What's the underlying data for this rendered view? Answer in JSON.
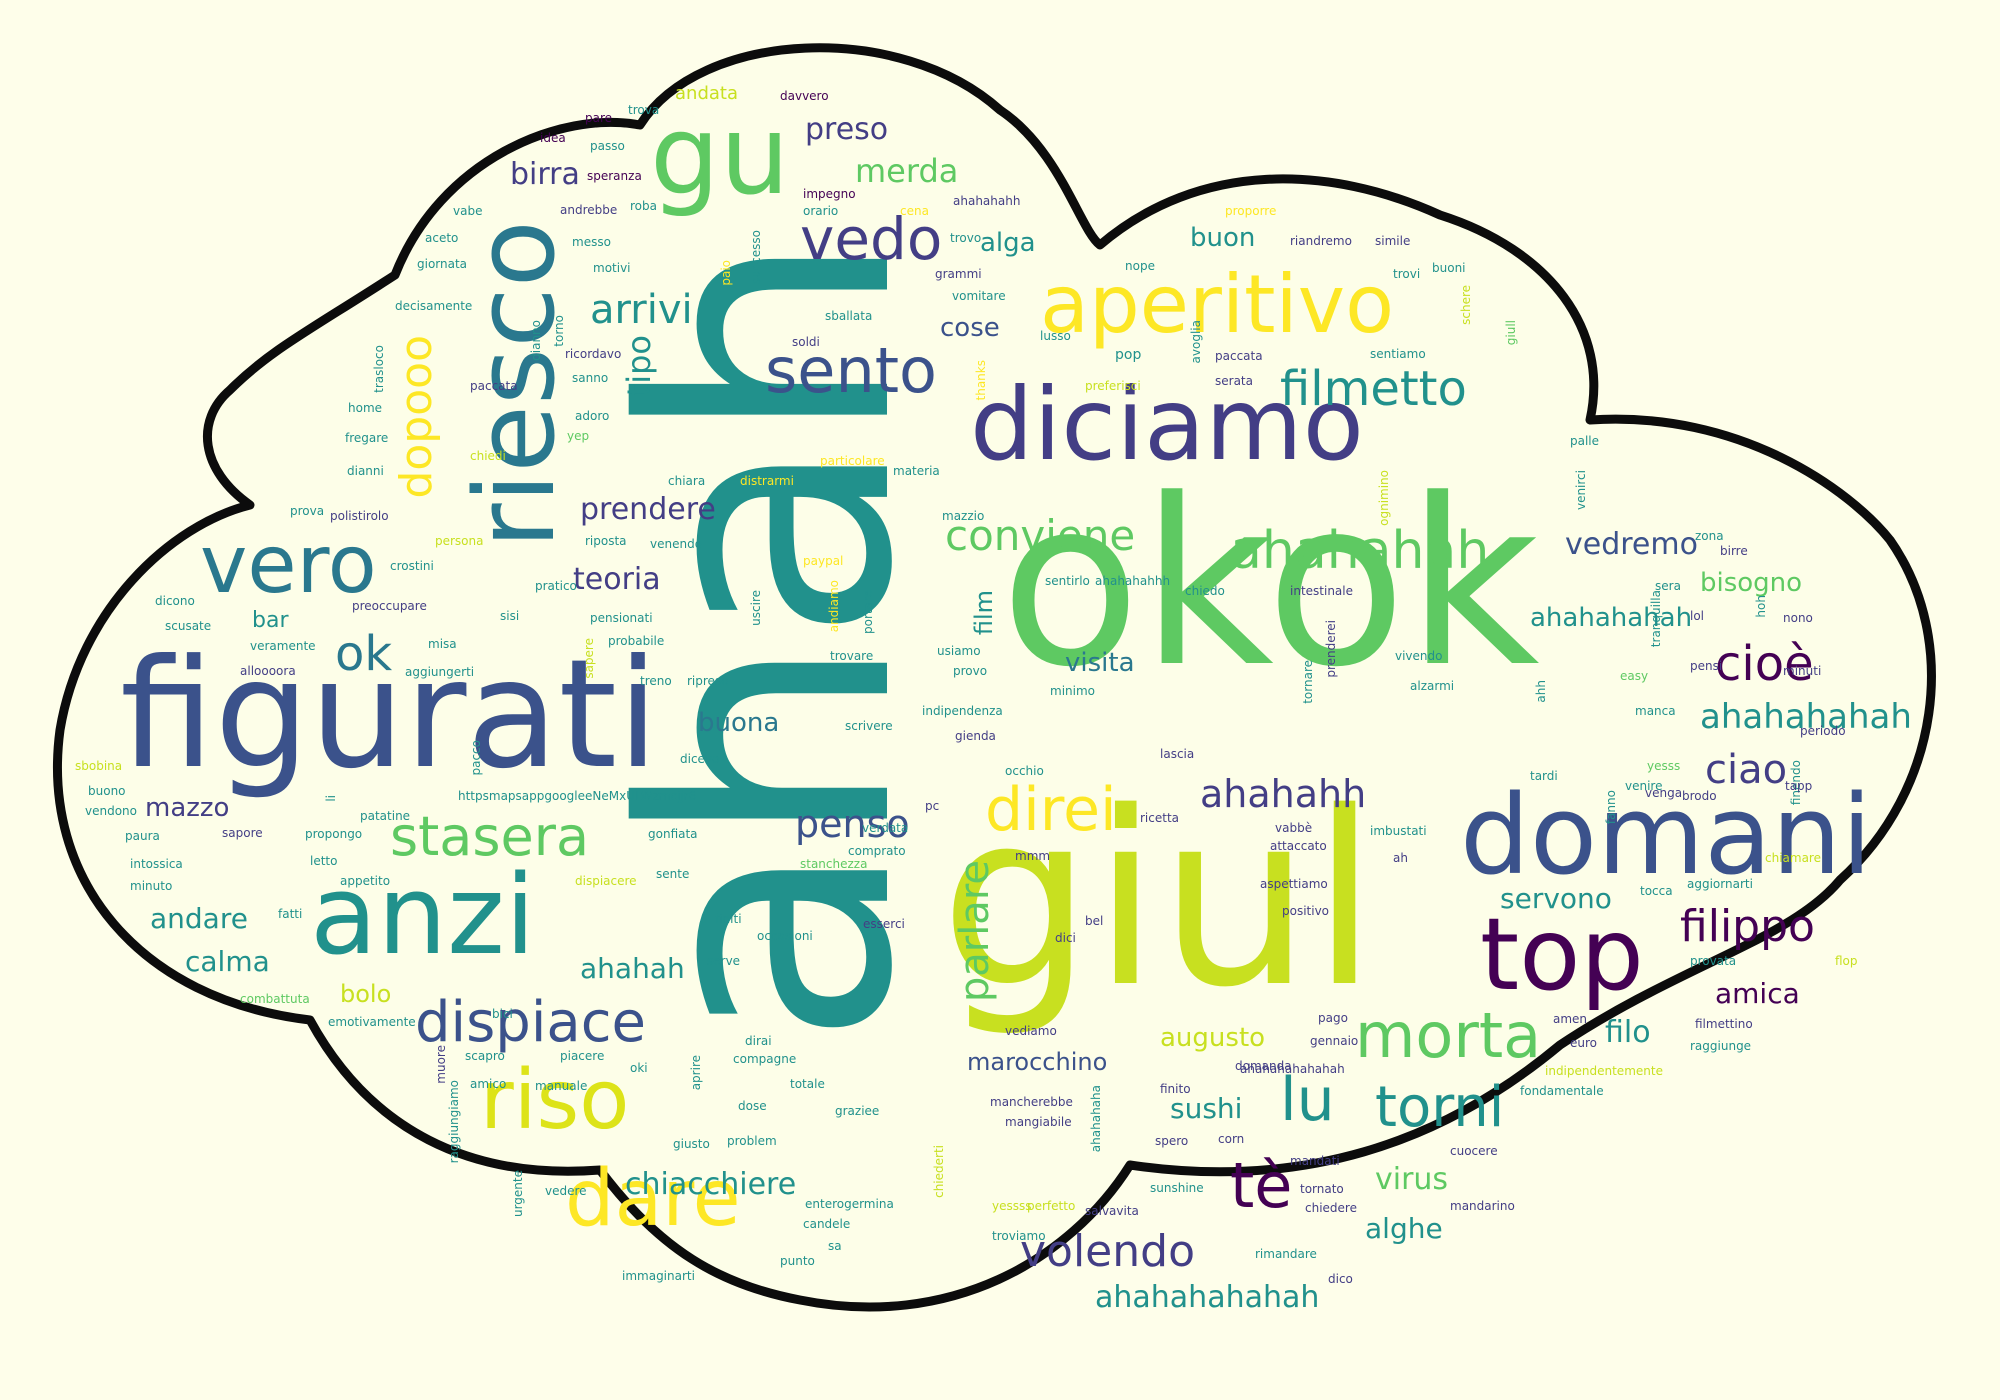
{
  "colors": {
    "background": "#fefeea",
    "cloud_fill": "#fdfee8",
    "cloud_outline": "#0c0c0c",
    "palette": [
      "#440154",
      "#3b528b",
      "#21918c",
      "#5ec962",
      "#fde725"
    ]
  },
  "words": {
    "ahah": "ahah",
    "okok": "okok",
    "giul": "giul",
    "figurati": "figurati",
    "domani": "domani",
    "diciamo": "diciamo",
    "anzi": "anzi",
    "riesco": "riesco",
    "aperitivo": "aperitivo",
    "gu": "gu",
    "top": "top",
    "vero": "vero",
    "riso": "riso",
    "dare": "dare",
    "sento": "sento",
    "vedo": "vedo",
    "morta": "morta",
    "torni": "torni",
    "lu": "lu",
    "te": "tè",
    "stasera": "stasera",
    "ahahahah": "ahahahah",
    "direi": "direi",
    "filmetto": "filmetto",
    "dispiace": "dispiace",
    "dopooo": "dopooo",
    "cioe": "cioè",
    "ok": "ok",
    "conviene": "conviene",
    "ahahahh": "ahahahh",
    "filippo": "filippo",
    "ahahahahah": "ahahahahah",
    "ciao": "ciao",
    "volendo": "volendo",
    "chiacchiere": "chiacchiere",
    "prendere": "prendere",
    "arrivi": "arrivi",
    "vedremo": "vedremo",
    "penso": "penso",
    "parlare": "parlare",
    "ahahahahahah": "ahahahahahah",
    "ahahahahah2": "ahahahahah",
    "merda": "merda",
    "preso": "preso",
    "birra": "birra",
    "teoria": "teoria",
    "tipo": "tipo",
    "buona": "buona",
    "mazzo": "mazzo",
    "andare": "andare",
    "calma": "calma",
    "ahahah": "ahahah",
    "bolo": "bolo",
    "amica": "amica",
    "filo": "filo",
    "augusto": "augusto",
    "sushi": "sushi",
    "virus": "virus",
    "alghe": "alghe",
    "bisogno": "bisogno",
    "servono": "servono",
    "marocchino": "marocchino",
    "visita": "visita",
    "cose": "cose",
    "alga": "alga",
    "buon": "buon",
    "film": "film",
    "bar": "bar",
    "andata": "andata",
    "davvero": "davvero",
    "trova": "trova",
    "pare": "pare",
    "passo": "passo",
    "idea": "idea",
    "speranza": "speranza",
    "impegno": "impegno",
    "ahahahahh": "ahahahahh",
    "andrebbe": "andrebbe",
    "roba": "roba",
    "orario": "orario",
    "cena": "cena",
    "proporre": "proporre",
    "vabe": "vabe",
    "messo": "messo",
    "aceto": "aceto",
    "successo": "successo",
    "trovo": "trovo",
    "riandremo": "riandremo",
    "simile": "simile",
    "giornata": "giornata",
    "motivi": "motivi",
    "grammi": "grammi",
    "nope": "nope",
    "trovi": "trovi",
    "buoni": "buoni",
    "decisamente": "decisamente",
    "vomitare": "vomitare",
    "schere": "schere",
    "paio": "paio",
    "sballata": "sballata",
    "ricordavo": "ricordavo",
    "soldi": "soldi",
    "pop": "pop",
    "lusso": "lusso",
    "paccata": "paccata",
    "sentiamo": "sentiamo",
    "serata": "serata",
    "sanno": "sanno",
    "preferisci": "preferisci",
    "home": "home",
    "adoro": "adoro",
    "fregare": "fregare",
    "yep": "yep",
    "palle": "palle",
    "particolare": "particolare",
    "dianni": "dianni",
    "chiedi": "chiedi",
    "chiara": "chiara",
    "distrarmi": "distrarmi",
    "materia": "materia",
    "prova": "prova",
    "polistirolo": "polistirolo",
    "persona": "persona",
    "riposta": "riposta",
    "mazzio": "mazzio",
    "paypal": "paypal",
    "venendo": "venendo",
    "crostini": "crostini",
    "birre": "birre",
    "zona": "zona",
    "dicono": "dicono",
    "preoccupare": "preoccupare",
    "pratico": "pratico",
    "sentirlo": "sentirlo",
    "ahahahahhh": "ahahahahhh",
    "chiedo": "chiedo",
    "intestinale": "intestinale",
    "sera": "sera",
    "scusate": "scusate",
    "sisi": "sisi",
    "pensionati": "pensionati",
    "uscire": "uscire",
    "portare": "portare",
    "lol": "lol",
    "nono": "nono",
    "veramente": "veramente",
    "misa": "misa",
    "probabile": "probabile",
    "usiamo": "usiamo",
    "vivendo": "vivendo",
    "tornare": "tornare",
    "alloooora": "alloooora",
    "aggiungerti": "aggiungerti",
    "trovare": "trovare",
    "provo": "provo",
    "minimo": "minimo",
    "alzarmi": "alzarmi",
    "easy": "easy",
    "pensi": "pensi",
    "minuti": "minuti",
    "treno": "treno",
    "ripreso": "ripreso",
    "indipendenza": "indipendenza",
    "manca": "manca",
    "sbobina": "sbobina",
    "pacco": "pacco",
    "scrivere": "scrivere",
    "gienda": "gienda",
    "periodo": "periodo",
    "dicevo": "dicevo",
    "occhio": "occhio",
    "lascia": "lascia",
    "tardi": "tardi",
    "yesss": "yesss",
    "finendo": "finendo",
    "buono": "buono",
    "vendono": "vendono",
    "url": "httpsmapsappgoogleeNeMxULWzmcjjr6",
    "pc": "pc",
    "venire": "venire",
    "venga": "venga",
    "brodo": "brodo",
    "tapp": "tapp",
    "paura": "paura",
    "patatine": "patatine",
    "verdata": "verdata",
    "ricetta": "ricetta",
    "mmm": "mmm",
    "vabbe": "vabbè",
    "imbustati": "imbustati",
    "ah": "ah",
    "intossica": "intossica",
    "sapore": "sapore",
    "propongo": "propongo",
    "gonfiata": "gonfiata",
    "comprato": "comprato",
    "attaccato": "attaccato",
    "chiamare": "chiamare",
    "letto": "letto",
    "appetito": "appetito",
    "sente": "sente",
    "stanchezza": "stanchezza",
    "dispiacere": "dispiacere",
    "aspettiamo": "aspettiamo",
    "tocca": "tocca",
    "aggiornarti": "aggiornarti",
    "minuto": "minuto",
    "fatti": "fatti",
    "finiti": "finiti",
    "occasioni": "occasioni",
    "esserci": "esserci",
    "bel": "bel",
    "positivo": "positivo",
    "dici": "dici",
    "flop": "flop",
    "serve": "serve",
    "provata": "provata",
    "combattuta": "combattuta",
    "bici": "bici",
    "emotivamente": "emotivamente",
    "vediamo": "vediamo",
    "pago": "pago",
    "amen": "amen",
    "filmettino": "filmettino",
    "muore": "muore",
    "scapro": "scapro",
    "piacere": "piacere",
    "dirai": "dirai",
    "compagne": "compagne",
    "domanda": "domanda",
    "gennaio": "gennaio",
    "euro": "euro",
    "raggiunge": "raggiunge",
    "amico": "amico",
    "manuale": "manuale",
    "totale": "totale",
    "ahahahahahahah": "ahahahahahahah",
    "indipendentemente": "indipendentemente",
    "graziee": "graziee",
    "mancherebbe": "mancherebbe",
    "finito": "finito",
    "fondamentale": "fondamentale",
    "giusto": "giusto",
    "problem": "problem",
    "dose": "dose",
    "mangiabile": "mangiabile",
    "spero": "spero",
    "corn": "corn",
    "mandati": "mandati",
    "cuocere": "cuocere",
    "urgente": "urgente",
    "vedere": "vedere",
    "enterogermina": "enterogermina",
    "perfetto": "perfetto",
    "salvavita": "salvavita",
    "sunshine": "sunshine",
    "tornato": "tornato",
    "chiedere": "chiedere",
    "mandarino": "mandarino",
    "candele": "candele",
    "yessss": "yessss",
    "troviamo": "troviamo",
    "rimandare": "rimandare",
    "sa": "sa",
    "punto": "punto",
    "immaginarti": "immaginarti",
    "li": "li",
    "dico": "dico",
    "raggiungiamo": "raggiungiamo",
    "chiederti": "chiederti",
    "ahahahaha": "ahahahaha",
    "trasloco": "trasloco",
    "dianno": "dianno",
    "torno": "torno",
    "thanks": "thanks",
    "avoglia": "avoglia",
    "giull": "giull",
    "ognimino": "ognimino",
    "prenderei": "prenderei",
    "tranquilla": "tranquilla",
    "sapere": "sapere",
    "andiamo": "andiamo",
    "hoh": "hoh",
    "venirci": "venirci",
    "ahh": "ahh",
    "oki": "oki",
    "aprire": "aprire",
    "paccata2": "paccata",
    "fanno": "fanno"
  }
}
